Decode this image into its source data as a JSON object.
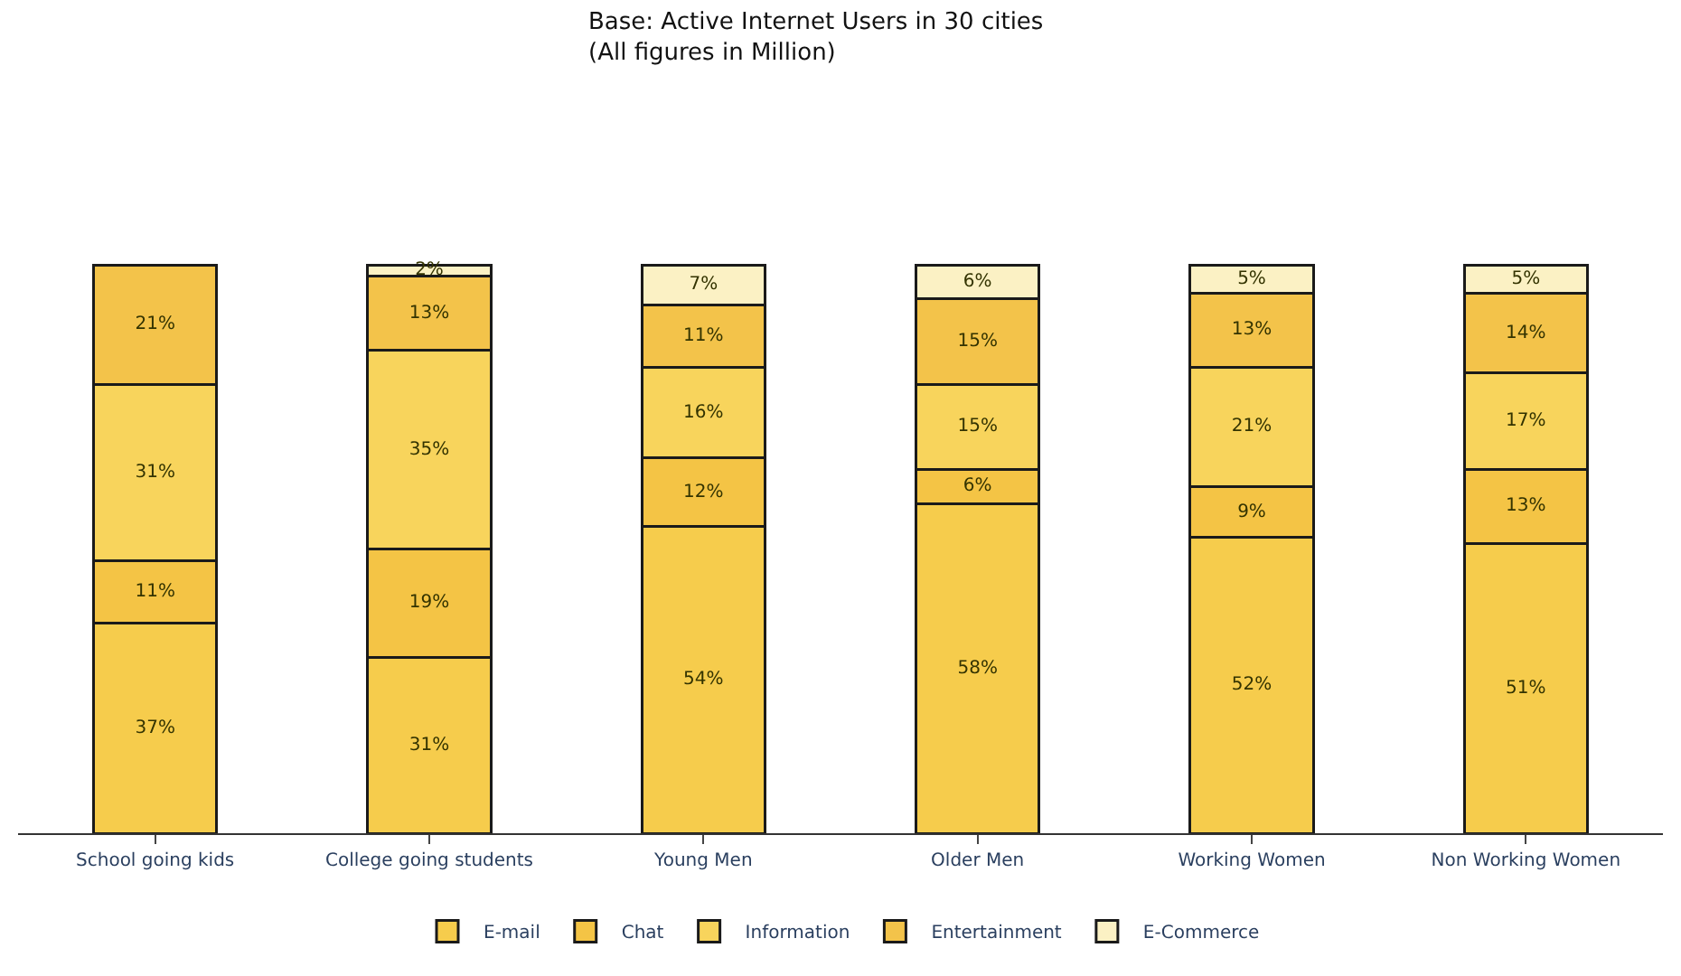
{
  "chart_data": {
    "type": "bar",
    "title": "Base: Active Internet Users in 30 cities\n(All figures in Million)",
    "categories": [
      "School going kids",
      "College going students",
      "Young Men",
      "Older Men",
      "Working Women",
      "Non Working Women"
    ],
    "stacked": true,
    "legend": "bottom",
    "series": [
      {
        "name": "E-mail",
        "color": "#f6cc4c",
        "values": [
          37,
          31,
          54,
          58,
          52,
          51
        ],
        "value_labels": [
          "37%",
          "31%",
          "54%",
          "58%",
          "52%",
          "51%"
        ]
      },
      {
        "name": "Chat",
        "color": "#f4c445",
        "values": [
          11,
          19,
          12,
          6,
          9,
          13
        ],
        "value_labels": [
          "11%",
          "19%",
          "12%",
          "6%",
          "9%",
          "13%"
        ]
      },
      {
        "name": "Information",
        "color": "#f8d45c",
        "values": [
          31,
          35,
          16,
          15,
          21,
          17
        ],
        "value_labels": [
          "31%",
          "35%",
          "16%",
          "15%",
          "21%",
          "17%"
        ]
      },
      {
        "name": "Entertainment",
        "color": "#f3c34a",
        "values": [
          21,
          13,
          11,
          15,
          13,
          14
        ],
        "value_labels": [
          "21%",
          "13%",
          "11%",
          "15%",
          "13%",
          "14%"
        ]
      },
      {
        "name": "E-Commerce",
        "color": "#fbf1c4",
        "values": [
          null,
          2,
          7,
          6,
          5,
          5
        ],
        "value_labels": [
          null,
          "2%",
          "7%",
          "6%",
          "5%",
          "5%"
        ]
      }
    ]
  }
}
